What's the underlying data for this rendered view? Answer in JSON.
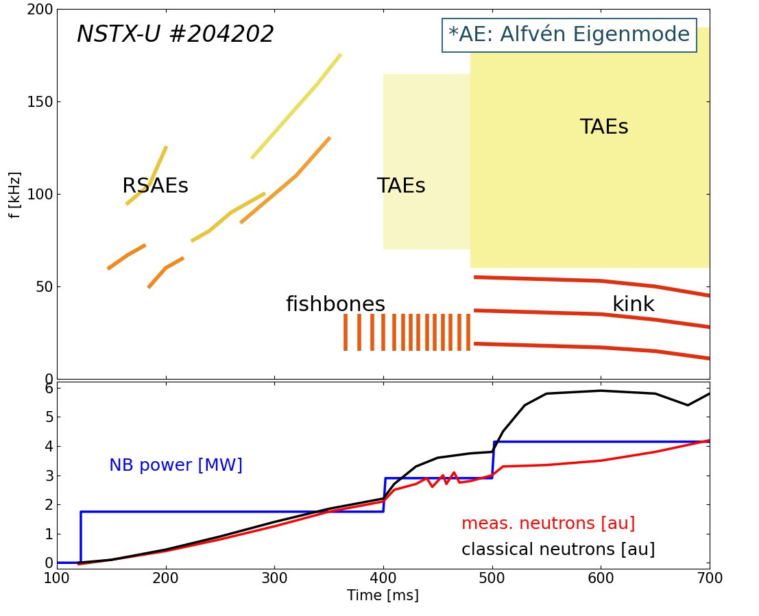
{
  "chart_data": [
    {
      "type": "spectrogram",
      "ylabel": "f [kHz]",
      "xlim": [
        100,
        700
      ],
      "ylim": [
        0,
        200
      ],
      "xticks": [
        100,
        200,
        300,
        400,
        500,
        600,
        700
      ],
      "yticks": [
        0,
        50,
        100,
        150,
        200
      ],
      "tick_labels": "y",
      "annotations": [
        {
          "text": "NSTX-U #204202"
        },
        {
          "text": "*AE: Alfvén Eigenmode"
        },
        {
          "text": "RSAEs"
        },
        {
          "text": "TAEs"
        },
        {
          "text": "TAEs"
        },
        {
          "text": "fishbones"
        },
        {
          "text": "kink"
        }
      ],
      "series": [
        {
          "type": "area",
          "color": "#f2ea5a",
          "x": [
            480,
            700
          ],
          "low": [
            60,
            60
          ],
          "high": [
            190,
            190
          ]
        },
        {
          "type": "area",
          "color": "#f5f0a0",
          "x": [
            400,
            480
          ],
          "low": [
            70,
            70
          ],
          "high": [
            165,
            165
          ]
        },
        {
          "type": "line",
          "color": "#f08a1c",
          "x": [
            148,
            165,
            180
          ],
          "values": [
            60,
            67,
            72
          ]
        },
        {
          "type": "line",
          "color": "#e8c63a",
          "x": [
            165,
            185,
            200
          ],
          "values": [
            95,
            105,
            125
          ]
        },
        {
          "type": "line",
          "color": "#f08a1c",
          "x": [
            185,
            200,
            215
          ],
          "values": [
            50,
            60,
            65
          ]
        },
        {
          "type": "line",
          "color": "#e8c63a",
          "x": [
            225,
            240,
            260,
            290
          ],
          "values": [
            75,
            80,
            90,
            100
          ]
        },
        {
          "type": "line",
          "color": "#f0a030",
          "x": [
            270,
            290,
            320,
            335,
            350
          ],
          "values": [
            85,
            95,
            110,
            120,
            130
          ]
        },
        {
          "type": "line",
          "color": "#e8e060",
          "x": [
            280,
            310,
            340,
            360
          ],
          "values": [
            120,
            140,
            160,
            175
          ]
        },
        {
          "type": "bursts",
          "color": "#e85a10",
          "x": [
            365,
            378,
            390,
            400,
            410,
            418,
            425,
            432,
            440,
            447,
            455,
            462,
            470,
            478
          ],
          "low": [
            15,
            15,
            15,
            15,
            15,
            15,
            15,
            15,
            15,
            15,
            15,
            15,
            15,
            15
          ],
          "high": [
            35,
            35,
            35,
            35,
            35,
            35,
            35,
            35,
            35,
            35,
            35,
            35,
            35,
            35
          ]
        },
        {
          "type": "line",
          "color": "#e03010",
          "x": [
            485,
            600,
            650,
            700
          ],
          "values": [
            55,
            53,
            50,
            45
          ]
        },
        {
          "type": "line",
          "color": "#e03010",
          "x": [
            485,
            600,
            650,
            700
          ],
          "values": [
            37,
            35,
            32,
            28
          ]
        },
        {
          "type": "line",
          "color": "#e03010",
          "x": [
            485,
            600,
            650,
            700
          ],
          "values": [
            19,
            17,
            15,
            11
          ]
        }
      ]
    },
    {
      "type": "line",
      "xlabel": "Time [ms]",
      "xlim": [
        100,
        700
      ],
      "ylim": [
        -0.2,
        6.2
      ],
      "xticks": [
        100,
        200,
        300,
        400,
        500,
        600,
        700
      ],
      "yticks": [
        0,
        1,
        2,
        3,
        4,
        5,
        6
      ],
      "series": [
        {
          "name": "NB power [MW]",
          "color": "#0000ff",
          "x": [
            100,
            122,
            122,
            400,
            402,
            500,
            502,
            700
          ],
          "values": [
            0,
            0,
            1.75,
            1.75,
            2.9,
            2.9,
            4.15,
            4.15
          ]
        },
        {
          "name": "meas. neutrons [au]",
          "color": "#ff0000",
          "x": [
            120,
            150,
            200,
            250,
            300,
            350,
            400,
            410,
            430,
            440,
            445,
            455,
            458,
            465,
            470,
            480,
            500,
            510,
            550,
            600,
            650,
            700
          ],
          "values": [
            -0.05,
            0.1,
            0.4,
            0.8,
            1.25,
            1.75,
            2.1,
            2.5,
            2.7,
            2.9,
            2.6,
            3.0,
            2.7,
            3.1,
            2.75,
            2.8,
            3.0,
            3.3,
            3.35,
            3.5,
            3.8,
            4.2
          ]
        },
        {
          "name": "classical neutrons [au]",
          "color": "#000000",
          "x": [
            120,
            150,
            200,
            250,
            300,
            350,
            400,
            410,
            430,
            450,
            480,
            500,
            510,
            530,
            550,
            600,
            650,
            680,
            700
          ],
          "values": [
            0,
            0.1,
            0.45,
            0.9,
            1.4,
            1.85,
            2.2,
            2.7,
            3.3,
            3.6,
            3.75,
            3.8,
            4.5,
            5.4,
            5.8,
            5.9,
            5.8,
            5.4,
            5.8
          ]
        }
      ]
    }
  ]
}
